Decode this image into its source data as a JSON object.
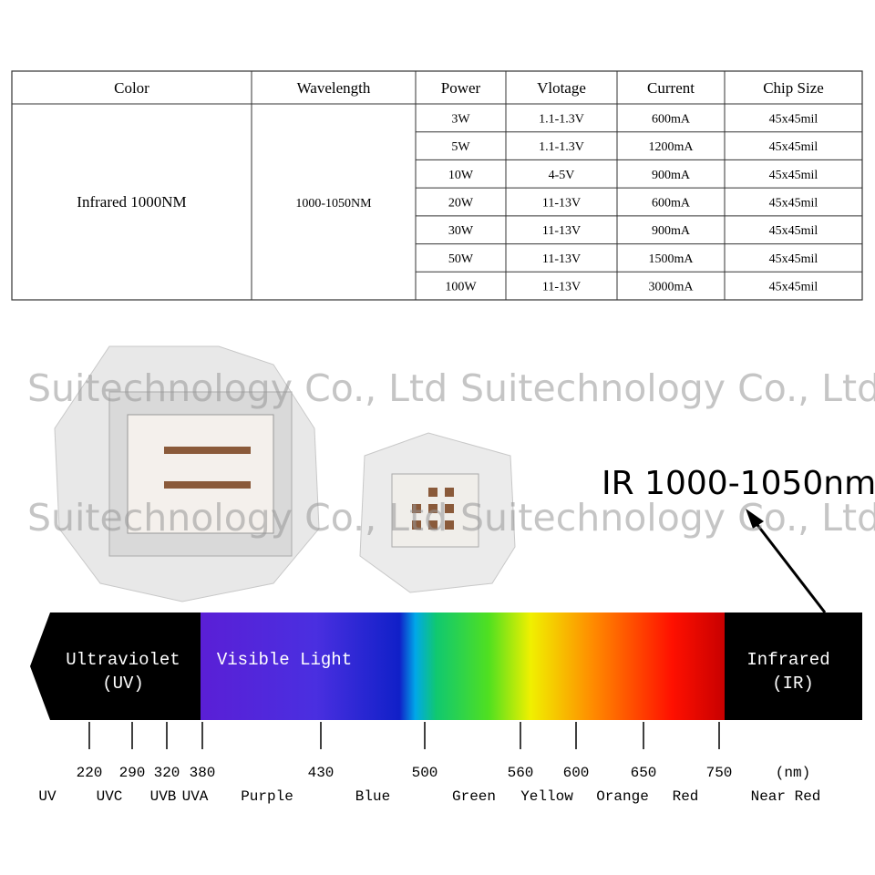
{
  "table": {
    "headers": [
      "Color",
      "Wavelength",
      "Power",
      "Vlotage",
      "Current",
      "Chip Size"
    ],
    "color": "Infrared 1000NM",
    "wavelength": "1000-1050NM",
    "rows": [
      [
        "3W",
        "1.1-1.3V",
        "600mA",
        "45x45mil"
      ],
      [
        "5W",
        "1.1-1.3V",
        "1200mA",
        "45x45mil"
      ],
      [
        "10W",
        "4-5V",
        "900mA",
        "45x45mil"
      ],
      [
        "20W",
        "11-13V",
        "600mA",
        "45x45mil"
      ],
      [
        "30W",
        "11-13V",
        "900mA",
        "45x45mil"
      ],
      [
        "50W",
        "11-13V",
        "1500mA",
        "45x45mil"
      ],
      [
        "100W",
        "11-13V",
        "3000mA",
        "45x45mil"
      ]
    ]
  },
  "watermarks": [
    "Suitechnology Co., Ltd",
    "Suitechnology Co., Ltd",
    "Suitechnology Co., Ltd",
    "Suitechnology Co., Ltd"
  ],
  "annotation": "IR 1000-1050nm",
  "spectrum": {
    "regions": [
      "Ultraviolet",
      "(UV)",
      "Visible Light",
      "Infrared",
      "(IR)"
    ],
    "ticks": [
      "220",
      "290",
      "320",
      "380",
      "430",
      "500",
      "560",
      "600",
      "650",
      "750",
      "(nm)"
    ],
    "bands": [
      "UV",
      "UVC",
      "UVB",
      "UVA",
      "Purple",
      "Blue",
      "Green",
      "Yellow",
      "Orange",
      "Red",
      "Near Red"
    ]
  }
}
